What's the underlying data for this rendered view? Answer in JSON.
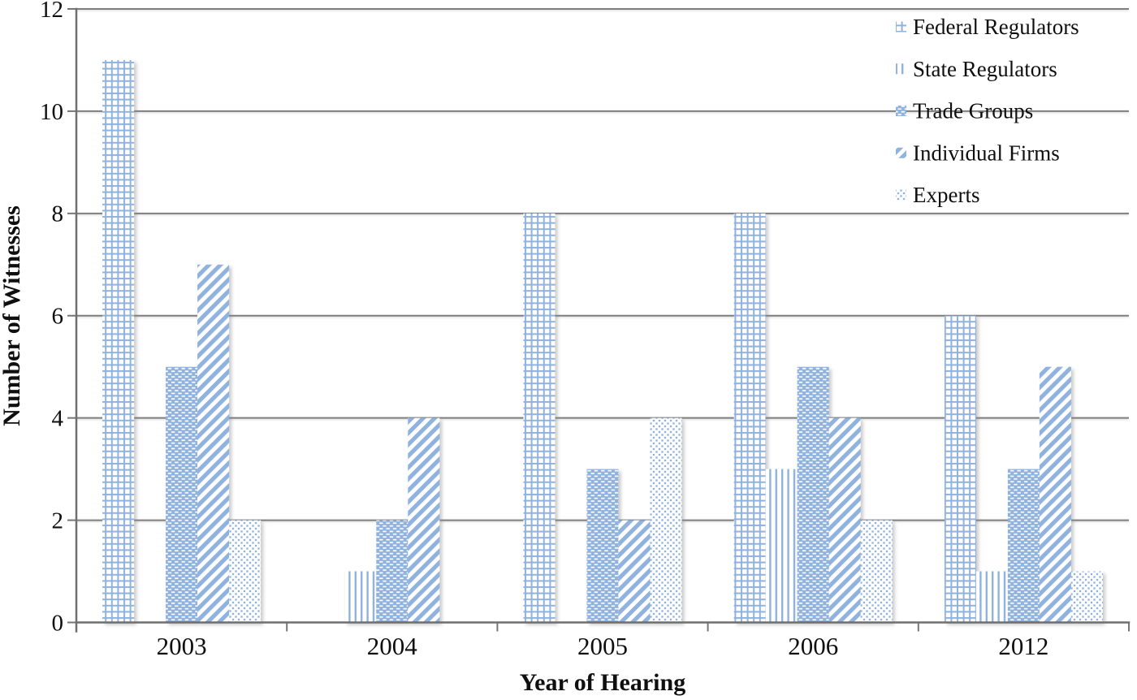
{
  "chart_data": {
    "type": "bar",
    "title": "",
    "xlabel": "Year of Hearing",
    "ylabel": "Number of Witnesses",
    "categories": [
      "2003",
      "2004",
      "2005",
      "2006",
      "2012"
    ],
    "series": [
      {
        "name": "Federal Regulators",
        "pattern": "grid-check",
        "values": [
          11,
          0,
          8,
          8,
          6
        ]
      },
      {
        "name": "State Regulators",
        "pattern": "vertical-lines",
        "values": [
          0,
          1,
          0,
          3,
          1
        ]
      },
      {
        "name": "Trade Groups",
        "pattern": "brick-dashes",
        "values": [
          5,
          2,
          3,
          5,
          3
        ]
      },
      {
        "name": "Individual Firms",
        "pattern": "diagonal-stripes",
        "values": [
          7,
          4,
          2,
          4,
          5
        ]
      },
      {
        "name": "Experts",
        "pattern": "diamond-dots",
        "values": [
          2,
          0,
          4,
          2,
          1
        ]
      }
    ],
    "ylim": [
      0,
      12
    ],
    "ytick_step": 2,
    "yticks": [
      0,
      2,
      4,
      6,
      8,
      10,
      12
    ],
    "grid": true,
    "legend_position": "top-right",
    "bar_color": "#8FB2DE",
    "gridline_color": "#7E7E7E",
    "axis_color": "#6F6F6F",
    "text_color": "#0F0F0F",
    "background_color": "#FFFFFF"
  }
}
